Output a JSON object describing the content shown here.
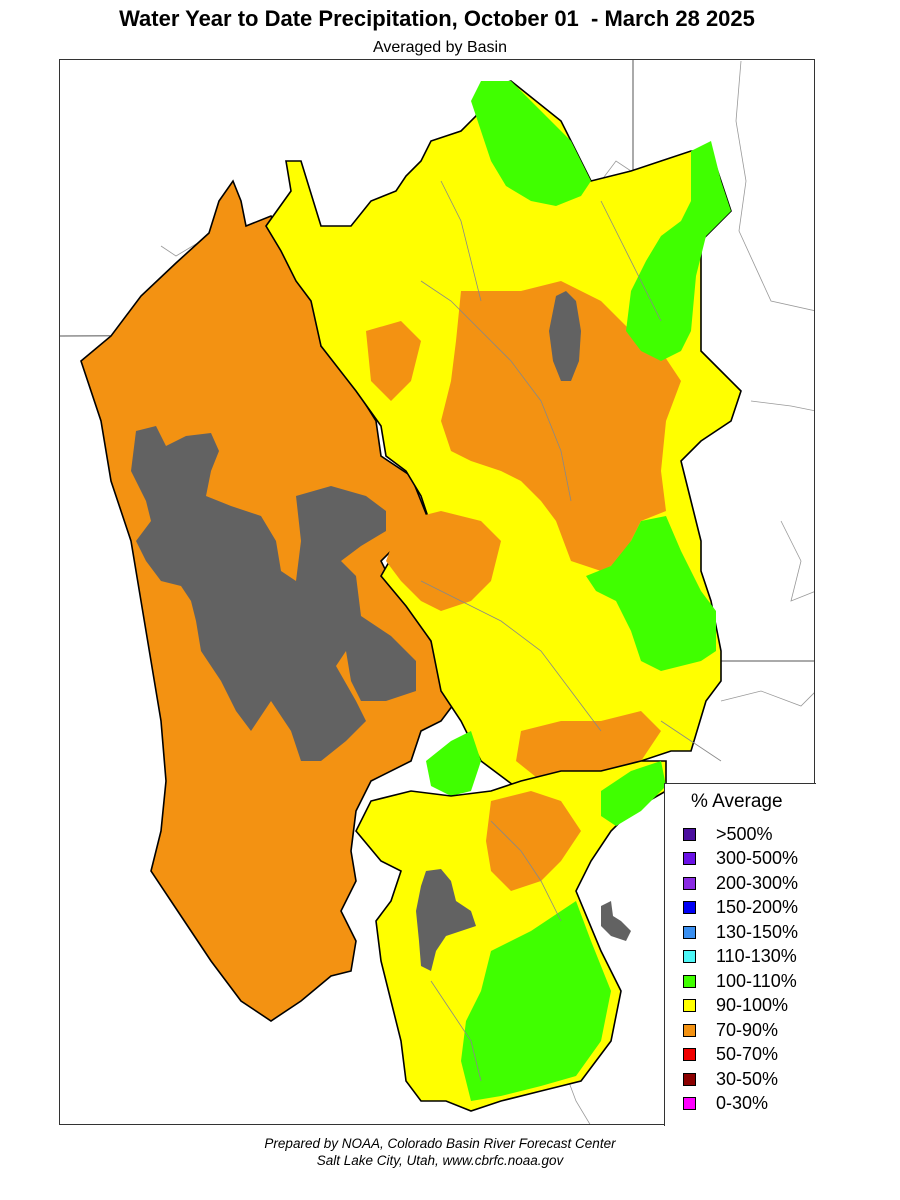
{
  "title": "Water Year to Date Precipitation, October 01  - March 28 2025",
  "subtitle": "Averaged by Basin",
  "legend": {
    "title": "% Average",
    "items": [
      {
        "label": ">500%",
        "color": "#4b0f9e"
      },
      {
        "label": "300-500%",
        "color": "#6a12e6"
      },
      {
        "label": "200-300%",
        "color": "#8a2be2"
      },
      {
        "label": "150-200%",
        "color": "#0000f5"
      },
      {
        "label": "130-150%",
        "color": "#3a8ff0"
      },
      {
        "label": "110-130%",
        "color": "#4df6f6"
      },
      {
        "label": "100-110%",
        "color": "#40ff00"
      },
      {
        "label": "90-100%",
        "color": "#ffff00"
      },
      {
        "label": "70-90%",
        "color": "#f39212"
      },
      {
        "label": "50-70%",
        "color": "#f00000"
      },
      {
        "label": "30-50%",
        "color": "#8b0000"
      },
      {
        "label": "0-30%",
        "color": "#ff00ff"
      }
    ]
  },
  "footer": {
    "line1": "Prepared by NOAA, Colorado Basin River Forecast Center",
    "line2": "Salt Lake City, Utah, www.cbrfc.noaa.gov"
  },
  "colors": {
    "lake": "#626262",
    "orange": "#f39212",
    "yellow": "#ffff00",
    "green": "#40ff00"
  }
}
